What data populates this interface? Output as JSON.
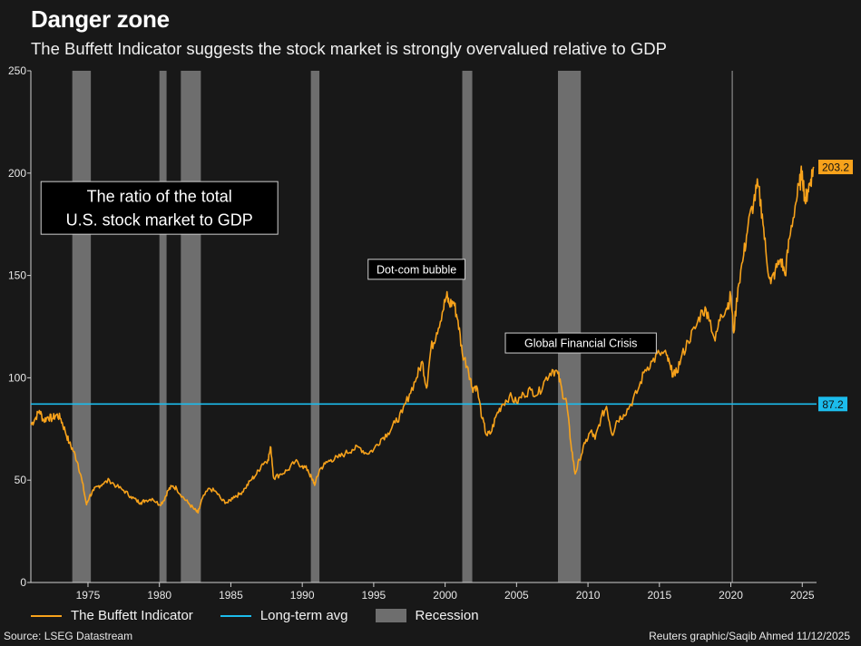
{
  "header": {
    "title": "Danger zone",
    "subtitle": "The Buffett Indicator suggests the stock market is strongly overvalued relative to GDP"
  },
  "footer": {
    "source": "Source: LSEG Datastream",
    "credit": "Reuters graphic/Saqib Ahmed 11/12/2025"
  },
  "colors": {
    "background": "#181818",
    "indicator": "#f7a21b",
    "long_term_avg": "#1cbcec",
    "recession": "#6e6e6e",
    "axis": "#d0d0d0"
  },
  "chart_data": {
    "type": "line",
    "title": "Danger zone",
    "subtitle": "The Buffett Indicator suggests the stock market is strongly overvalued relative to GDP",
    "xlabel": "",
    "ylabel": "",
    "xlim": [
      1971,
      2026
    ],
    "ylim": [
      0,
      250
    ],
    "x_ticks": [
      1975,
      1980,
      1985,
      1990,
      1995,
      2000,
      2005,
      2010,
      2015,
      2020,
      2025
    ],
    "y_ticks": [
      0,
      50,
      100,
      150,
      200,
      250
    ],
    "grid": false,
    "legend_position": "bottom-left",
    "legend": [
      {
        "label": "The Buffett Indicator",
        "kind": "line",
        "color": "#f7a21b"
      },
      {
        "label": "Long-term avg",
        "kind": "line",
        "color": "#1cbcec"
      },
      {
        "label": "Recession",
        "kind": "box",
        "color": "#6e6e6e"
      }
    ],
    "series": [
      {
        "name": "The Buffett Indicator",
        "color": "#f7a21b",
        "points": [
          [
            1971.0,
            77
          ],
          [
            1971.3,
            80
          ],
          [
            1971.6,
            84
          ],
          [
            1971.9,
            79
          ],
          [
            1972.2,
            81
          ],
          [
            1972.5,
            80
          ],
          [
            1972.8,
            82
          ],
          [
            1973.1,
            80
          ],
          [
            1973.4,
            74
          ],
          [
            1973.7,
            68
          ],
          [
            1974.0,
            64
          ],
          [
            1974.3,
            58
          ],
          [
            1974.6,
            49
          ],
          [
            1974.9,
            38
          ],
          [
            1975.1,
            42
          ],
          [
            1975.4,
            45
          ],
          [
            1975.7,
            47
          ],
          [
            1976.0,
            48
          ],
          [
            1976.5,
            50
          ],
          [
            1977.0,
            47
          ],
          [
            1977.5,
            45
          ],
          [
            1978.0,
            42
          ],
          [
            1978.4,
            40
          ],
          [
            1978.7,
            39
          ],
          [
            1979.0,
            40
          ],
          [
            1979.5,
            41
          ],
          [
            1980.0,
            38
          ],
          [
            1980.3,
            40
          ],
          [
            1980.6,
            45
          ],
          [
            1980.9,
            47
          ],
          [
            1981.2,
            46
          ],
          [
            1981.6,
            42
          ],
          [
            1982.0,
            39
          ],
          [
            1982.4,
            36
          ],
          [
            1982.7,
            34
          ],
          [
            1983.0,
            41
          ],
          [
            1983.5,
            46
          ],
          [
            1984.0,
            44
          ],
          [
            1984.4,
            40
          ],
          [
            1984.8,
            39
          ],
          [
            1985.2,
            42
          ],
          [
            1985.6,
            43
          ],
          [
            1986.0,
            46
          ],
          [
            1986.4,
            50
          ],
          [
            1986.8,
            53
          ],
          [
            1987.2,
            58
          ],
          [
            1987.6,
            60
          ],
          [
            1987.8,
            66
          ],
          [
            1988.0,
            51
          ],
          [
            1988.5,
            53
          ],
          [
            1989.0,
            55
          ],
          [
            1989.5,
            59
          ],
          [
            1990.0,
            57
          ],
          [
            1990.4,
            55
          ],
          [
            1990.7,
            50
          ],
          [
            1990.9,
            48
          ],
          [
            1991.2,
            55
          ],
          [
            1991.6,
            58
          ],
          [
            1992.0,
            60
          ],
          [
            1992.5,
            61
          ],
          [
            1993.0,
            63
          ],
          [
            1993.5,
            65
          ],
          [
            1994.0,
            66
          ],
          [
            1994.5,
            63
          ],
          [
            1995.0,
            65
          ],
          [
            1995.5,
            70
          ],
          [
            1996.0,
            73
          ],
          [
            1996.5,
            78
          ],
          [
            1997.0,
            83
          ],
          [
            1997.5,
            92
          ],
          [
            1998.0,
            100
          ],
          [
            1998.4,
            108
          ],
          [
            1998.7,
            95
          ],
          [
            1999.0,
            114
          ],
          [
            1999.4,
            122
          ],
          [
            1999.8,
            132
          ],
          [
            2000.1,
            140
          ],
          [
            2000.3,
            136
          ],
          [
            2000.6,
            137
          ],
          [
            2000.9,
            128
          ],
          [
            2001.2,
            112
          ],
          [
            2001.6,
            105
          ],
          [
            2001.9,
            95
          ],
          [
            2002.2,
            96
          ],
          [
            2002.6,
            80
          ],
          [
            2002.9,
            72
          ],
          [
            2003.2,
            73
          ],
          [
            2003.6,
            82
          ],
          [
            2004.0,
            87
          ],
          [
            2004.5,
            91
          ],
          [
            2005.0,
            88
          ],
          [
            2005.5,
            92
          ],
          [
            2006.0,
            94
          ],
          [
            2006.5,
            92
          ],
          [
            2007.0,
            99
          ],
          [
            2007.5,
            104
          ],
          [
            2007.9,
            102
          ],
          [
            2008.2,
            93
          ],
          [
            2008.5,
            88
          ],
          [
            2008.8,
            68
          ],
          [
            2009.1,
            53
          ],
          [
            2009.4,
            60
          ],
          [
            2009.8,
            68
          ],
          [
            2010.2,
            74
          ],
          [
            2010.5,
            70
          ],
          [
            2010.9,
            80
          ],
          [
            2011.3,
            86
          ],
          [
            2011.7,
            72
          ],
          [
            2012.0,
            79
          ],
          [
            2012.5,
            82
          ],
          [
            2013.0,
            87
          ],
          [
            2013.5,
            94
          ],
          [
            2014.0,
            104
          ],
          [
            2014.5,
            108
          ],
          [
            2015.0,
            112
          ],
          [
            2015.5,
            111
          ],
          [
            2015.8,
            104
          ],
          [
            2016.1,
            101
          ],
          [
            2016.5,
            109
          ],
          [
            2017.0,
            118
          ],
          [
            2017.5,
            124
          ],
          [
            2018.0,
            133
          ],
          [
            2018.4,
            132
          ],
          [
            2018.9,
            118
          ],
          [
            2019.3,
            131
          ],
          [
            2019.7,
            134
          ],
          [
            2020.0,
            140
          ],
          [
            2020.2,
            122
          ],
          [
            2020.5,
            144
          ],
          [
            2020.9,
            160
          ],
          [
            2021.2,
            174
          ],
          [
            2021.6,
            186
          ],
          [
            2021.9,
            194
          ],
          [
            2022.2,
            180
          ],
          [
            2022.5,
            158
          ],
          [
            2022.8,
            146
          ],
          [
            2023.1,
            152
          ],
          [
            2023.5,
            158
          ],
          [
            2023.8,
            150
          ],
          [
            2024.1,
            168
          ],
          [
            2024.5,
            184
          ],
          [
            2024.8,
            194
          ],
          [
            2025.0,
            201
          ],
          [
            2025.2,
            186
          ],
          [
            2025.4,
            192
          ],
          [
            2025.6,
            197
          ],
          [
            2025.8,
            203
          ]
        ]
      },
      {
        "name": "Long-term avg",
        "color": "#1cbcec",
        "value": 87.2
      }
    ],
    "recessions": [
      [
        1973.9,
        1975.2
      ],
      [
        1980.0,
        1980.5
      ],
      [
        1981.5,
        1982.9
      ],
      [
        1990.6,
        1991.2
      ],
      [
        2001.2,
        2001.9
      ],
      [
        2007.9,
        2009.5
      ]
    ],
    "marker_line_x": 2020.1,
    "end_labels": {
      "indicator": "203.2",
      "long_term_avg": "87.2"
    },
    "annotations": [
      {
        "text_lines": [
          "The ratio of the total",
          "U.S. stock market to GDP"
        ],
        "x": 1980.0,
        "y": 183,
        "style": "large"
      },
      {
        "text_lines": [
          "Dot-com bubble"
        ],
        "x": 1998.0,
        "y": 153,
        "style": "small"
      },
      {
        "text_lines": [
          "Global Financial Crisis"
        ],
        "x": 2009.5,
        "y": 117,
        "style": "small"
      }
    ]
  }
}
